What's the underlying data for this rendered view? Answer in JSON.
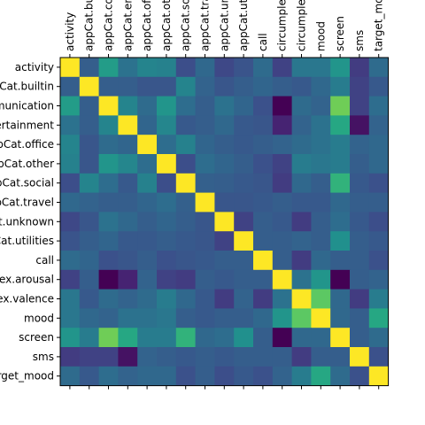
{
  "chart_data": {
    "type": "heatmap",
    "colormap": "viridis",
    "x_labels": [
      "activity",
      "appCat.builtin",
      "appCat.communication",
      "appCat.entertainment",
      "appCat.office",
      "appCat.other",
      "appCat.social",
      "appCat.travel",
      "appCat.unknown",
      "appCat.utilities",
      "call",
      "circumplex.arousal",
      "circumplex.valence",
      "mood",
      "screen",
      "sms",
      "target_mood"
    ],
    "y_labels": [
      "activity",
      "appCat.builtin",
      "appCat.communication",
      "appCat.entertainment",
      "appCat.office",
      "appCat.other",
      "appCat.social",
      "appCat.travel",
      "appCat.unknown",
      "appCat.utilities",
      "call",
      "circumplex.arousal",
      "circumplex.valence",
      "mood",
      "screen",
      "sms",
      "target_mood"
    ],
    "value_range": [
      0,
      1
    ],
    "matrix": [
      [
        1.0,
        0.3,
        0.55,
        0.38,
        0.45,
        0.44,
        0.24,
        0.34,
        0.22,
        0.26,
        0.35,
        0.2,
        0.4,
        0.4,
        0.52,
        0.18,
        0.35
      ],
      [
        0.3,
        1.0,
        0.3,
        0.3,
        0.27,
        0.27,
        0.45,
        0.32,
        0.27,
        0.3,
        0.33,
        0.3,
        0.28,
        0.34,
        0.42,
        0.2,
        0.28
      ],
      [
        0.55,
        0.3,
        1.0,
        0.45,
        0.35,
        0.52,
        0.36,
        0.3,
        0.38,
        0.33,
        0.25,
        0.0,
        0.35,
        0.32,
        0.78,
        0.2,
        0.36
      ],
      [
        0.38,
        0.3,
        0.45,
        1.0,
        0.33,
        0.46,
        0.28,
        0.3,
        0.34,
        0.28,
        0.27,
        0.1,
        0.32,
        0.38,
        0.6,
        0.05,
        0.32
      ],
      [
        0.45,
        0.27,
        0.35,
        0.33,
        1.0,
        0.36,
        0.44,
        0.33,
        0.3,
        0.28,
        0.3,
        0.32,
        0.35,
        0.38,
        0.42,
        0.32,
        0.34
      ],
      [
        0.44,
        0.27,
        0.52,
        0.46,
        0.36,
        1.0,
        0.24,
        0.36,
        0.33,
        0.3,
        0.25,
        0.2,
        0.42,
        0.4,
        0.42,
        0.3,
        0.34
      ],
      [
        0.24,
        0.45,
        0.36,
        0.28,
        0.44,
        0.24,
        1.0,
        0.31,
        0.3,
        0.28,
        0.27,
        0.18,
        0.34,
        0.3,
        0.65,
        0.28,
        0.25
      ],
      [
        0.34,
        0.32,
        0.3,
        0.3,
        0.33,
        0.36,
        0.31,
        1.0,
        0.27,
        0.27,
        0.28,
        0.3,
        0.28,
        0.28,
        0.34,
        0.3,
        0.3
      ],
      [
        0.22,
        0.27,
        0.38,
        0.34,
        0.3,
        0.33,
        0.3,
        0.27,
        1.0,
        0.2,
        0.3,
        0.28,
        0.18,
        0.3,
        0.36,
        0.28,
        0.24
      ],
      [
        0.26,
        0.3,
        0.33,
        0.28,
        0.28,
        0.3,
        0.28,
        0.27,
        0.2,
        1.0,
        0.3,
        0.3,
        0.32,
        0.3,
        0.5,
        0.3,
        0.28
      ],
      [
        0.35,
        0.33,
        0.25,
        0.27,
        0.3,
        0.25,
        0.27,
        0.28,
        0.3,
        0.3,
        1.0,
        0.3,
        0.18,
        0.34,
        0.3,
        0.3,
        0.25
      ],
      [
        0.2,
        0.3,
        0.0,
        0.1,
        0.32,
        0.2,
        0.18,
        0.3,
        0.28,
        0.3,
        0.3,
        1.0,
        0.38,
        0.52,
        0.0,
        0.3,
        0.32
      ],
      [
        0.4,
        0.28,
        0.35,
        0.32,
        0.35,
        0.42,
        0.34,
        0.28,
        0.18,
        0.32,
        0.18,
        0.38,
        1.0,
        0.75,
        0.34,
        0.18,
        0.42
      ],
      [
        0.4,
        0.34,
        0.32,
        0.38,
        0.38,
        0.4,
        0.3,
        0.28,
        0.3,
        0.3,
        0.34,
        0.52,
        0.75,
        1.0,
        0.34,
        0.3,
        0.6
      ],
      [
        0.52,
        0.42,
        0.78,
        0.6,
        0.42,
        0.42,
        0.65,
        0.34,
        0.36,
        0.5,
        0.3,
        0.0,
        0.34,
        0.34,
        1.0,
        0.3,
        0.35
      ],
      [
        0.18,
        0.2,
        0.2,
        0.05,
        0.32,
        0.3,
        0.28,
        0.3,
        0.28,
        0.3,
        0.3,
        0.3,
        0.18,
        0.3,
        0.3,
        1.0,
        0.25
      ],
      [
        0.35,
        0.28,
        0.36,
        0.32,
        0.34,
        0.34,
        0.25,
        0.3,
        0.24,
        0.28,
        0.25,
        0.32,
        0.42,
        0.6,
        0.35,
        0.25,
        1.0
      ]
    ]
  }
}
